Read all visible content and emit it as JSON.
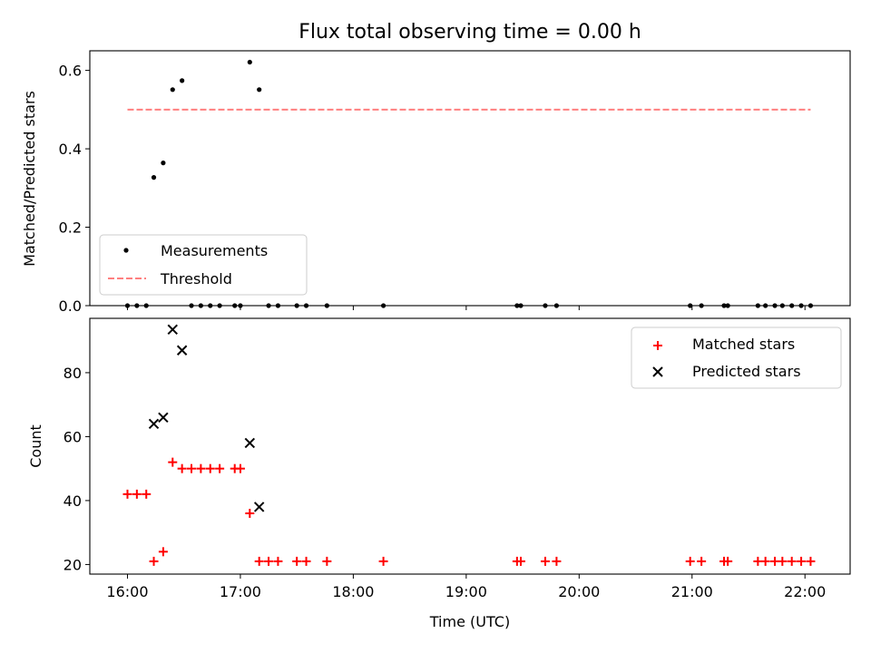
{
  "chart_data": [
    {
      "type": "scatter",
      "title": "Flux total observing time = 0.00 h",
      "xlabel": "",
      "ylabel": "Matched/Predicted stars",
      "xlim": [
        "15:40",
        "22:24"
      ],
      "ylim": [
        0,
        0.65
      ],
      "yticks": [
        "0.0",
        "0.2",
        "0.4",
        "0.6"
      ],
      "legend_position": "lower-left",
      "series": [
        {
          "name": "Measurements",
          "marker": "dot",
          "color": "#000000",
          "points": [
            [
              "16:00",
              0
            ],
            [
              "16:05",
              0
            ],
            [
              "16:10",
              0
            ],
            [
              "16:14",
              0.327
            ],
            [
              "16:19",
              0.364
            ],
            [
              "16:24",
              0.551
            ],
            [
              "16:29",
              0.574
            ],
            [
              "16:34",
              0
            ],
            [
              "16:39",
              0
            ],
            [
              "16:44",
              0
            ],
            [
              "16:49",
              0
            ],
            [
              "16:57",
              0
            ],
            [
              "17:00",
              0
            ],
            [
              "17:05",
              0.621
            ],
            [
              "17:10",
              0.551
            ],
            [
              "17:15",
              0
            ],
            [
              "17:20",
              0
            ],
            [
              "17:30",
              0
            ],
            [
              "17:35",
              0
            ],
            [
              "17:46",
              0
            ],
            [
              "18:16",
              0
            ],
            [
              "19:27",
              0
            ],
            [
              "19:29",
              0
            ],
            [
              "19:42",
              0
            ],
            [
              "19:48",
              0
            ],
            [
              "20:59",
              0
            ],
            [
              "21:05",
              0
            ],
            [
              "21:17",
              0
            ],
            [
              "21:19",
              0
            ],
            [
              "21:35",
              0
            ],
            [
              "21:39",
              0
            ],
            [
              "21:44",
              0
            ],
            [
              "21:48",
              0
            ],
            [
              "21:53",
              0
            ],
            [
              "21:58",
              0
            ],
            [
              "22:03",
              0
            ]
          ]
        },
        {
          "name": "Threshold",
          "type": "line",
          "style": "dashed",
          "color": "#ff7f7f",
          "points": [
            [
              "16:00",
              0.5
            ],
            [
              "22:03",
              0.5
            ]
          ]
        }
      ]
    },
    {
      "type": "scatter",
      "title": "",
      "xlabel": "Time (UTC)",
      "ylabel": "Count",
      "xlim": [
        "15:40",
        "22:24"
      ],
      "ylim": [
        17,
        97
      ],
      "yticks": [
        "20",
        "40",
        "60",
        "80"
      ],
      "xticks": [
        "16:00",
        "17:00",
        "18:00",
        "19:00",
        "20:00",
        "21:00",
        "22:00"
      ],
      "legend_position": "upper-right",
      "series": [
        {
          "name": "Matched stars",
          "marker": "plus",
          "color": "#ff0000",
          "points": [
            [
              "16:00",
              42
            ],
            [
              "16:05",
              42
            ],
            [
              "16:10",
              42
            ],
            [
              "16:14",
              21
            ],
            [
              "16:19",
              24
            ],
            [
              "16:24",
              52
            ],
            [
              "16:29",
              50
            ],
            [
              "16:34",
              50
            ],
            [
              "16:39",
              50
            ],
            [
              "16:44",
              50
            ],
            [
              "16:49",
              50
            ],
            [
              "16:57",
              50
            ],
            [
              "17:00",
              50
            ],
            [
              "17:05",
              36
            ],
            [
              "17:10",
              21
            ],
            [
              "17:15",
              21
            ],
            [
              "17:20",
              21
            ],
            [
              "17:30",
              21
            ],
            [
              "17:35",
              21
            ],
            [
              "17:46",
              21
            ],
            [
              "18:16",
              21
            ],
            [
              "19:27",
              21
            ],
            [
              "19:29",
              21
            ],
            [
              "19:42",
              21
            ],
            [
              "19:48",
              21
            ],
            [
              "20:59",
              21
            ],
            [
              "21:05",
              21
            ],
            [
              "21:17",
              21
            ],
            [
              "21:19",
              21
            ],
            [
              "21:35",
              21
            ],
            [
              "21:39",
              21
            ],
            [
              "21:44",
              21
            ],
            [
              "21:48",
              21
            ],
            [
              "21:53",
              21
            ],
            [
              "21:58",
              21
            ],
            [
              "22:03",
              21
            ]
          ]
        },
        {
          "name": "Predicted stars",
          "marker": "x",
          "color": "#000000",
          "points": [
            [
              "16:14",
              64
            ],
            [
              "16:19",
              66
            ],
            [
              "16:24",
              93.5
            ],
            [
              "16:29",
              87
            ],
            [
              "17:05",
              58
            ],
            [
              "17:10",
              38
            ]
          ]
        }
      ]
    }
  ]
}
